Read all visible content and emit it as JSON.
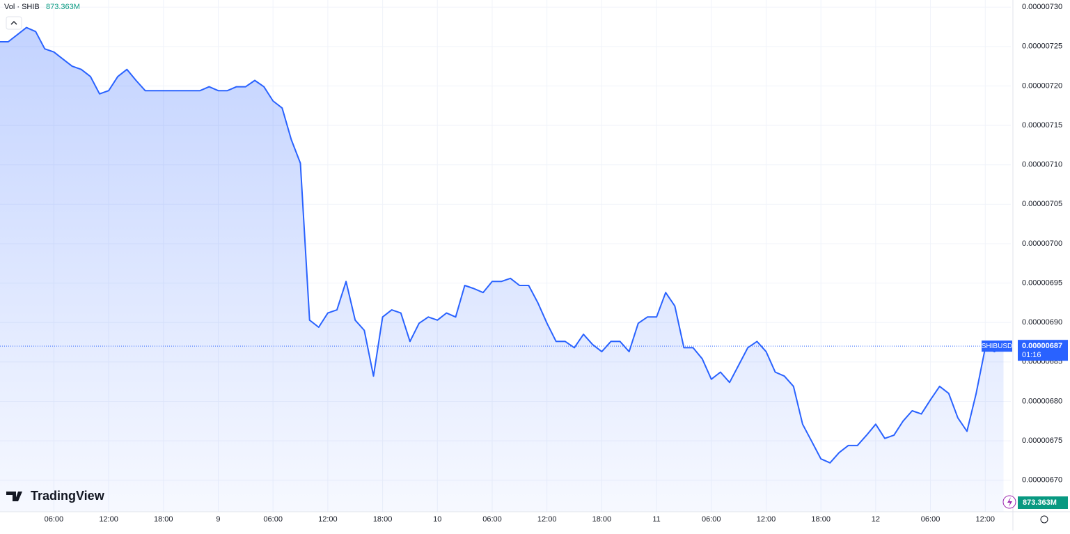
{
  "chart_data": {
    "type": "line",
    "indicator_label": "Vol · SHIB",
    "indicator_value": "873.363M",
    "volume_badge": "873.363M",
    "brand": "TradingView",
    "symbol": "SHIBUSD",
    "price_label": "0.00000687",
    "countdown": "01:16",
    "x": [
      0,
      1,
      2,
      3,
      4,
      5,
      6,
      7,
      8,
      9,
      10,
      11,
      12,
      13,
      14,
      15,
      16,
      17,
      18,
      19,
      20,
      21,
      22,
      23,
      24,
      25,
      26,
      27,
      28,
      29,
      30,
      31,
      32,
      33,
      34,
      35,
      36,
      37,
      38,
      39,
      40,
      41,
      42,
      43,
      44,
      45,
      46,
      47,
      48,
      49,
      50,
      51,
      52,
      53,
      54,
      55,
      56,
      57,
      58,
      59,
      60,
      61,
      62,
      63,
      64,
      65,
      66,
      67,
      68,
      69,
      70,
      71,
      72,
      73,
      74,
      75,
      76,
      77,
      78,
      79,
      80,
      81,
      82,
      83,
      84,
      85,
      86,
      87,
      88,
      89,
      90,
      91,
      92,
      93,
      94,
      95,
      96,
      97,
      98,
      99,
      100,
      101,
      102,
      103,
      104,
      105,
      106,
      107,
      108,
      109,
      110
    ],
    "series": [
      {
        "name": "SHIBUSD",
        "color": "#2962ff",
        "values": [
          7.256e-06,
          7.256e-06,
          7.265e-06,
          7.274e-06,
          7.269e-06,
          7.247e-06,
          7.243e-06,
          7.234e-06,
          7.225e-06,
          7.221e-06,
          7.212e-06,
          7.19e-06,
          7.194e-06,
          7.212e-06,
          7.221e-06,
          7.207e-06,
          7.194e-06,
          7.194e-06,
          7.194e-06,
          7.194e-06,
          7.194e-06,
          7.194e-06,
          7.194e-06,
          7.199e-06,
          7.194e-06,
          7.194e-06,
          7.199e-06,
          7.199e-06,
          7.207e-06,
          7.199e-06,
          7.181e-06,
          7.172e-06,
          7.132e-06,
          7.102e-06,
          6.903e-06,
          6.894e-06,
          6.912e-06,
          6.916e-06,
          6.952e-06,
          6.903e-06,
          6.89e-06,
          6.832e-06,
          6.907e-06,
          6.916e-06,
          6.912e-06,
          6.876e-06,
          6.899e-06,
          6.907e-06,
          6.903e-06,
          6.912e-06,
          6.907e-06,
          6.947e-06,
          6.943e-06,
          6.938e-06,
          6.952e-06,
          6.952e-06,
          6.956e-06,
          6.947e-06,
          6.947e-06,
          6.925e-06,
          6.899e-06,
          6.876e-06,
          6.876e-06,
          6.868e-06,
          6.885e-06,
          6.872e-06,
          6.863e-06,
          6.876e-06,
          6.876e-06,
          6.863e-06,
          6.899e-06,
          6.907e-06,
          6.907e-06,
          6.938e-06,
          6.921e-06,
          6.868e-06,
          6.868e-06,
          6.854e-06,
          6.828e-06,
          6.837e-06,
          6.824e-06,
          6.846e-06,
          6.868e-06,
          6.876e-06,
          6.863e-06,
          6.837e-06,
          6.832e-06,
          6.819e-06,
          6.771e-06,
          6.749e-06,
          6.727e-06,
          6.722e-06,
          6.735e-06,
          6.744e-06,
          6.744e-06,
          6.757e-06,
          6.771e-06,
          6.753e-06,
          6.757e-06,
          6.775e-06,
          6.788e-06,
          6.784e-06,
          6.802e-06,
          6.819e-06,
          6.81e-06,
          6.779e-06,
          6.762e-06,
          6.81e-06,
          6.868e-06,
          6.863e-06,
          6.87e-06
        ]
      }
    ],
    "xlim": [
      0.1,
      110.8
    ],
    "xticks": [
      {
        "value": 6,
        "label": "06:00"
      },
      {
        "value": 12,
        "label": "12:00"
      },
      {
        "value": 18,
        "label": "18:00"
      },
      {
        "value": 24,
        "label": "9"
      },
      {
        "value": 30,
        "label": "06:00"
      },
      {
        "value": 36,
        "label": "12:00"
      },
      {
        "value": 42,
        "label": "18:00"
      },
      {
        "value": 48,
        "label": "10"
      },
      {
        "value": 54,
        "label": "06:00"
      },
      {
        "value": 60,
        "label": "12:00"
      },
      {
        "value": 66,
        "label": "18:00"
      },
      {
        "value": 72,
        "label": "11"
      },
      {
        "value": 78,
        "label": "06:00"
      },
      {
        "value": 84,
        "label": "12:00"
      },
      {
        "value": 90,
        "label": "18:00"
      },
      {
        "value": 96,
        "label": "12"
      },
      {
        "value": 102,
        "label": "06:00"
      },
      {
        "value": 108,
        "label": "12:00"
      }
    ],
    "ylim": [
      6.66e-06,
      7.309e-06
    ],
    "yticks": [
      {
        "value": 6.7e-06,
        "label": "0.00000670"
      },
      {
        "value": 6.75e-06,
        "label": "0.00000675"
      },
      {
        "value": 6.8e-06,
        "label": "0.00000680"
      },
      {
        "value": 6.85e-06,
        "label": "0.00000685"
      },
      {
        "value": 6.9e-06,
        "label": "0.00000690"
      },
      {
        "value": 6.95e-06,
        "label": "0.00000695"
      },
      {
        "value": 7e-06,
        "label": "0.00000700"
      },
      {
        "value": 7.05e-06,
        "label": "0.00000705"
      },
      {
        "value": 7.1e-06,
        "label": "0.00000710"
      },
      {
        "value": 7.15e-06,
        "label": "0.00000715"
      },
      {
        "value": 7.2e-06,
        "label": "0.00000720"
      },
      {
        "value": 7.25e-06,
        "label": "0.00000725"
      },
      {
        "value": 7.3e-06,
        "label": "0.00000730"
      }
    ],
    "grid": true
  }
}
